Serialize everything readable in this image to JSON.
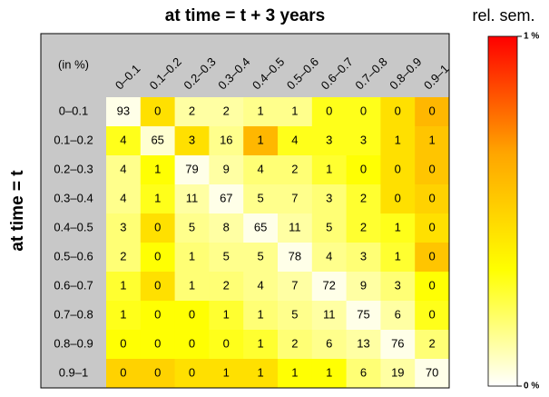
{
  "chart_data": {
    "type": "heatmap",
    "title": "at time = t + 3 years",
    "ylabel": "at time = t",
    "corner_label": "(in %)",
    "x_categories": [
      "0–0.1",
      "0.1–0.2",
      "0.2–0.3",
      "0.3–0.4",
      "0.4–0.5",
      "0.5–0.6",
      "0.6–0.7",
      "0.7–0.8",
      "0.8–0.9",
      "0.9–1"
    ],
    "y_categories": [
      "0–0.1",
      "0.1–0.2",
      "0.2–0.3",
      "0.3–0.4",
      "0.4–0.5",
      "0.5–0.6",
      "0.6–0.7",
      "0.7–0.8",
      "0.8–0.9",
      "0.9–1"
    ],
    "values": [
      [
        93,
        0,
        2,
        2,
        1,
        1,
        0,
        0,
        0,
        0
      ],
      [
        4,
        65,
        3,
        16,
        1,
        4,
        3,
        3,
        1,
        1
      ],
      [
        4,
        1,
        79,
        9,
        4,
        2,
        1,
        0,
        0,
        0
      ],
      [
        4,
        1,
        11,
        67,
        5,
        7,
        3,
        2,
        0,
        0
      ],
      [
        3,
        0,
        5,
        8,
        65,
        11,
        5,
        2,
        1,
        0
      ],
      [
        2,
        0,
        1,
        5,
        5,
        78,
        4,
        3,
        1,
        0
      ],
      [
        1,
        0,
        1,
        2,
        4,
        7,
        72,
        9,
        3,
        0
      ],
      [
        1,
        0,
        0,
        1,
        1,
        5,
        11,
        75,
        6,
        0
      ],
      [
        0,
        0,
        0,
        0,
        1,
        2,
        6,
        13,
        76,
        2
      ],
      [
        0,
        0,
        0,
        1,
        1,
        1,
        1,
        6,
        19,
        70
      ]
    ],
    "z_title": "rel. sem.",
    "z": [
      [
        0.03,
        0.45,
        0.12,
        0.12,
        0.15,
        0.15,
        0.3,
        0.3,
        0.45,
        0.6
      ],
      [
        0.3,
        0.06,
        0.45,
        0.15,
        0.6,
        0.3,
        0.3,
        0.3,
        0.45,
        0.55
      ],
      [
        0.15,
        0.33,
        0.03,
        0.12,
        0.18,
        0.18,
        0.27,
        0.33,
        0.45,
        0.55
      ],
      [
        0.15,
        0.3,
        0.12,
        0.03,
        0.15,
        0.15,
        0.18,
        0.27,
        0.45,
        0.5
      ],
      [
        0.18,
        0.45,
        0.15,
        0.12,
        0.03,
        0.12,
        0.18,
        0.27,
        0.3,
        0.45
      ],
      [
        0.18,
        0.33,
        0.18,
        0.15,
        0.15,
        0.03,
        0.15,
        0.18,
        0.27,
        0.55
      ],
      [
        0.27,
        0.45,
        0.18,
        0.18,
        0.15,
        0.12,
        0.03,
        0.12,
        0.18,
        0.33
      ],
      [
        0.3,
        0.33,
        0.33,
        0.27,
        0.18,
        0.15,
        0.12,
        0.03,
        0.12,
        0.3
      ],
      [
        0.33,
        0.33,
        0.33,
        0.3,
        0.27,
        0.18,
        0.15,
        0.12,
        0.03,
        0.18
      ],
      [
        0.5,
        0.5,
        0.45,
        0.45,
        0.45,
        0.33,
        0.33,
        0.18,
        0.12,
        0.03
      ]
    ],
    "zlim": [
      0,
      1
    ],
    "zticks": [
      {
        "value": 0,
        "label": "0 %"
      },
      {
        "value": 1,
        "label": "1 %"
      }
    ],
    "colors": [
      "#ffffff",
      "#ffff00",
      "#ffa500",
      "#ff0000"
    ],
    "header_color": "#c8c8c8"
  }
}
